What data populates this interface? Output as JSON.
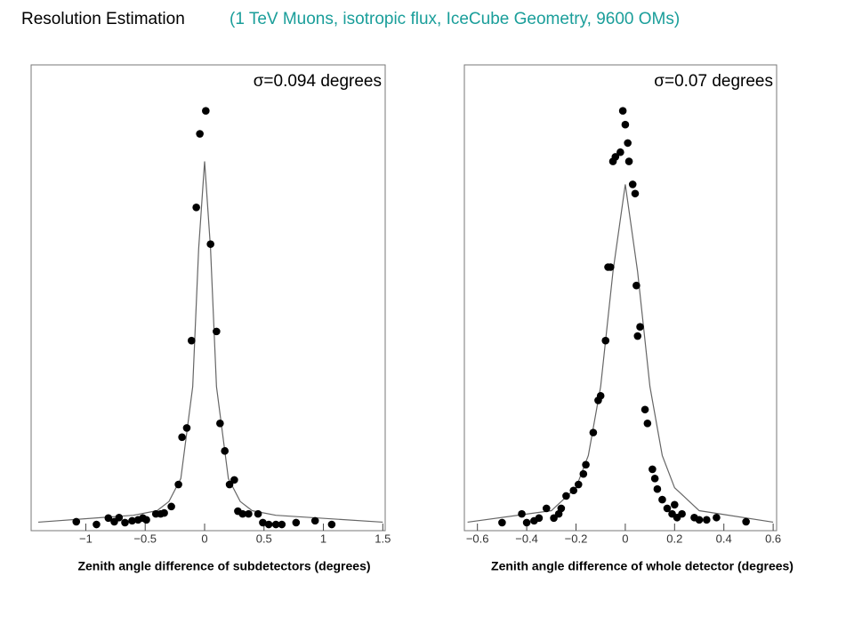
{
  "title": "Resolution Estimation",
  "subtitle": "(1 TeV Muons, isotropic flux, IceCube Geometry, 9600 OMs)",
  "chart_data": [
    {
      "type": "scatter",
      "annotation": "σ=0.094 degrees",
      "xlabel": "Zenith angle difference of subdetectors (degrees)",
      "color": "#000000",
      "xlim": [
        -1.46,
        1.52
      ],
      "ylim": [
        -1.35,
        100
      ],
      "xticks": [
        {
          "value": -1,
          "label": "−1"
        },
        {
          "value": -0.5,
          "label": "−0.5"
        },
        0,
        0.5,
        1,
        1.5
      ],
      "x": [
        -1.08,
        -0.91,
        -0.81,
        -0.76,
        -0.72,
        -0.67,
        -0.61,
        -0.56,
        -0.52,
        -0.49,
        -0.41,
        -0.37,
        -0.34,
        -0.28,
        -0.22,
        -0.19,
        -0.15,
        -0.11,
        -0.07,
        -0.04,
        0.01,
        0.05,
        0.1,
        0.13,
        0.17,
        0.21,
        0.25,
        0.28,
        0.32,
        0.37,
        0.45,
        0.49,
        0.54,
        0.6,
        0.65,
        0.77,
        0.93,
        1.07
      ],
      "values": [
        0.6,
        0,
        1.4,
        0.6,
        1.5,
        0.4,
        0.8,
        1.0,
        1.4,
        1.0,
        2.3,
        2.3,
        2.5,
        3.9,
        8.7,
        19,
        21,
        40,
        69,
        85,
        90,
        61,
        42,
        22,
        16,
        8.7,
        9.7,
        2.9,
        2.3,
        2.3,
        2.3,
        0.4,
        0,
        0,
        0,
        0.4,
        0.8,
        0
      ],
      "fit": {
        "x": [
          -1.4,
          -0.6,
          -0.4,
          -0.3,
          -0.2,
          -0.1,
          -0.05,
          0,
          0.05,
          0.1,
          0.2,
          0.3,
          0.4,
          0.6,
          1.5
        ],
        "values": [
          0.5,
          2,
          3,
          5,
          10,
          30,
          60,
          79,
          60,
          30,
          10,
          5,
          3,
          2,
          0.5
        ]
      }
    },
    {
      "type": "scatter",
      "annotation": "σ=0.07 degrees",
      "xlabel": "Zenith angle difference of whole detector (degrees)",
      "color": "#000000",
      "xlim": [
        -0.653,
        0.614
      ],
      "ylim": [
        -1.35,
        100
      ],
      "xticks": [
        {
          "value": -0.6,
          "label": "−0.6"
        },
        {
          "value": -0.4,
          "label": "−0.4"
        },
        {
          "value": -0.2,
          "label": "−0.2"
        },
        0,
        0.2,
        0.4,
        0.6
      ],
      "x": [
        -0.5,
        -0.42,
        -0.4,
        -0.37,
        -0.35,
        -0.32,
        -0.29,
        -0.27,
        -0.26,
        -0.24,
        -0.21,
        -0.19,
        -0.17,
        -0.16,
        -0.13,
        -0.11,
        -0.1,
        -0.08,
        -0.07,
        -0.06,
        -0.05,
        -0.04,
        -0.02,
        -0.01,
        0.0,
        0.01,
        0.015,
        0.03,
        0.04,
        0.045,
        0.05,
        0.06,
        0.08,
        0.09,
        0.11,
        0.12,
        0.13,
        0.15,
        0.17,
        0.19,
        0.2,
        0.21,
        0.23,
        0.28,
        0.3,
        0.33,
        0.37,
        0.49
      ],
      "values": [
        0.4,
        2.3,
        0.4,
        0.8,
        1.4,
        3.5,
        1.4,
        2.3,
        3.5,
        6.2,
        7.4,
        8.7,
        11,
        13,
        20,
        27,
        28,
        40,
        56,
        56,
        79,
        80,
        81,
        90,
        87,
        83,
        79,
        74,
        72,
        52,
        41,
        43,
        25,
        22,
        12,
        10,
        7.7,
        5.4,
        3.5,
        2.3,
        4.3,
        1.5,
        2.3,
        1.5,
        1.0,
        1.0,
        1.5,
        0.6
      ],
      "fit": {
        "x": [
          -0.64,
          -0.3,
          -0.2,
          -0.15,
          -0.1,
          -0.05,
          0,
          0.05,
          0.1,
          0.15,
          0.2,
          0.3,
          0.6
        ],
        "values": [
          0.5,
          3,
          8,
          15,
          30,
          55,
          74,
          55,
          30,
          15,
          8,
          3,
          0.5
        ]
      }
    }
  ]
}
